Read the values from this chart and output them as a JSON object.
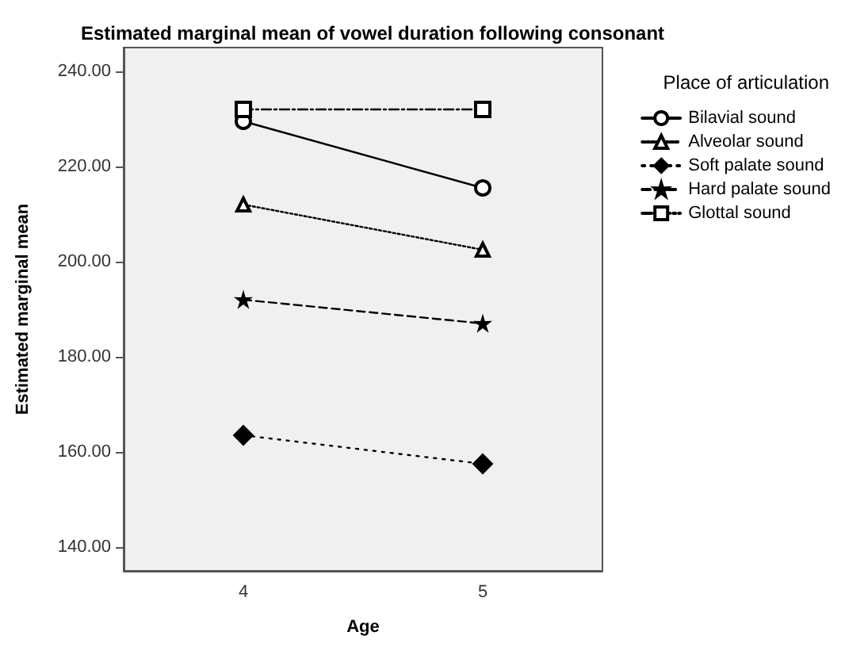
{
  "chart_data": {
    "type": "line",
    "title": "Estimated marginal mean of vowel duration following consonant",
    "xlabel": "Age",
    "ylabel": "Estimated marginal mean",
    "legend_title": "Place of articulation",
    "legend": "top right",
    "grid": false,
    "categories": [
      "4",
      "5"
    ],
    "ylim": [
      135,
      245
    ],
    "yticks": [
      {
        "value": 140,
        "label": "140.00"
      },
      {
        "value": 160,
        "label": "160.00"
      },
      {
        "value": 180,
        "label": "180.00"
      },
      {
        "value": 200,
        "label": "200.00"
      },
      {
        "value": 220,
        "label": "220.00"
      },
      {
        "value": 240,
        "label": "240.00"
      }
    ],
    "series": [
      {
        "name": "Bilavial sound",
        "color": "#000000",
        "values": [
          229.5,
          215.5
        ],
        "marker": "circle",
        "line_style": "solid"
      },
      {
        "name": "Alveolar sound",
        "color": "#000000",
        "values": [
          212,
          202.5
        ],
        "marker": "triangle",
        "line_style": "dotted"
      },
      {
        "name": "Soft palate sound",
        "color": "#000000",
        "values": [
          163.5,
          157.5
        ],
        "marker": "diamond",
        "line_style": "sparse_dotted"
      },
      {
        "name": "Hard palate sound",
        "color": "#000000",
        "values": [
          192,
          187
        ],
        "marker": "star",
        "line_style": "dashed"
      },
      {
        "name": "Glottal sound",
        "color": "#000000",
        "values": [
          232,
          232
        ],
        "marker": "square",
        "line_style": "dashdot"
      }
    ]
  }
}
